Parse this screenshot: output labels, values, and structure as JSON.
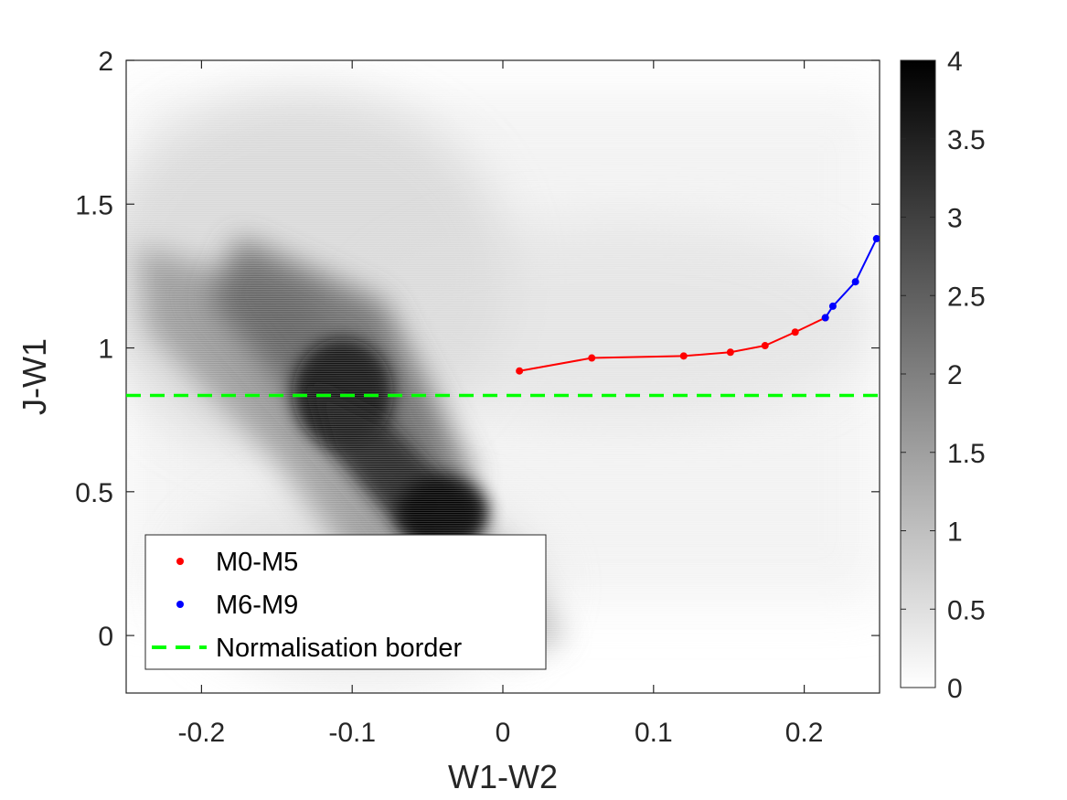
{
  "chart_data": {
    "type": "heatmap",
    "title": "",
    "xlabel": "W1-W2",
    "ylabel": "J-W1",
    "xlim": [
      -0.25,
      0.25
    ],
    "ylim": [
      -0.2,
      2
    ],
    "xticks": [
      -0.2,
      -0.1,
      0,
      0.1,
      0.2
    ],
    "xtick_labels": [
      "-0.2",
      "-0.1",
      "0",
      "0.1",
      "0.2"
    ],
    "yticks": [
      0,
      0.5,
      1,
      1.5,
      2
    ],
    "ytick_labels": [
      "0",
      "0.5",
      "1",
      "1.5",
      "2"
    ],
    "colormap": "gray (reversed: 0 = white, 4 = black)",
    "colorbar": {
      "lim": [
        0,
        4
      ],
      "ticks": [
        0,
        0.5,
        1,
        1.5,
        2,
        2.5,
        3,
        3.5,
        4
      ],
      "tick_labels": [
        "0",
        "0.5",
        "1",
        "1.5",
        "2",
        "2.5",
        "3",
        "3.5",
        "4"
      ]
    },
    "density_features": [
      {
        "description": "main dense ridge",
        "from": [
          -0.2,
          1.2
        ],
        "to": [
          -0.03,
          0.4
        ],
        "peak_value": 4
      },
      {
        "description": "secondary dense region",
        "center": [
          -0.1,
          0.85
        ],
        "peak_value": 3.7
      },
      {
        "description": "faint tail",
        "from": [
          -0.03,
          0.4
        ],
        "to": [
          0.05,
          0.0
        ],
        "peak_value": 2.5
      }
    ],
    "series": [
      {
        "name": "M0-M5",
        "color": "#ff0000",
        "marker": "dot",
        "x": [
          0.011,
          0.059,
          0.12,
          0.151,
          0.174,
          0.194,
          0.214
        ],
        "y": [
          0.92,
          0.965,
          0.972,
          0.985,
          1.008,
          1.055,
          1.105
        ]
      },
      {
        "name": "M6-M9",
        "color": "#0000ff",
        "marker": "dot",
        "x": [
          0.214,
          0.219,
          0.234,
          0.248
        ],
        "y": [
          1.105,
          1.145,
          1.23,
          1.38
        ]
      },
      {
        "name": "Normalisation border",
        "color": "#00ff00",
        "style": "dashed",
        "type": "hline",
        "y": 0.835
      }
    ],
    "legend": {
      "placement": "bottom-left",
      "entries": [
        {
          "label": "M0-M5",
          "color": "#ff0000",
          "symbol": "dot"
        },
        {
          "label": "M6-M9",
          "color": "#0000ff",
          "symbol": "dot"
        },
        {
          "label": "Normalisation border",
          "color": "#00ff00",
          "symbol": "dashed-line"
        }
      ]
    }
  }
}
